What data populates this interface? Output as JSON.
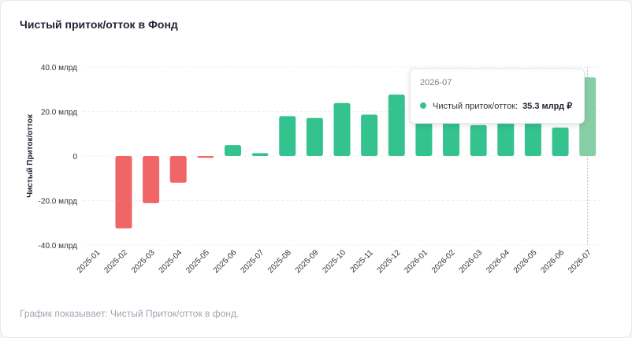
{
  "title": "Чистый приток/отток в Фонд",
  "footnote": "График показывает: Чистый Приток/отток в фонд.",
  "colors": {
    "positive": "#34c38f",
    "negative": "#f06565",
    "highlight": "#86cfa5"
  },
  "tooltip": {
    "title": "2026-07",
    "series_label": "Чистый приток/отток:",
    "value": "35.3 млрд ₽"
  },
  "chart_data": {
    "type": "bar",
    "title": "Чистый приток/отток в Фонд",
    "ylabel": "Чистый Приток/отток",
    "ylim": [
      -40,
      40
    ],
    "y_ticks": [
      {
        "value": 40,
        "label": "40.0 млрд"
      },
      {
        "value": 20,
        "label": "20.0 млрд"
      },
      {
        "value": 0,
        "label": "0"
      },
      {
        "value": -20,
        "label": "-20.0 млрд"
      },
      {
        "value": -40,
        "label": "-40.0 млрд"
      }
    ],
    "grid": true,
    "categories": [
      "2025-01",
      "2025-02",
      "2025-03",
      "2025-04",
      "2025-05",
      "2025-06",
      "2025-07",
      "2025-08",
      "2025-09",
      "2025-10",
      "2025-11",
      "2025-12",
      "2026-01",
      "2026-02",
      "2026-03",
      "2026-04",
      "2026-05",
      "2026-06",
      "2026-07"
    ],
    "values": [
      0,
      -32.5,
      -21.2,
      -12.0,
      -0.8,
      4.9,
      1.3,
      17.9,
      17.1,
      23.8,
      18.6,
      27.6,
      21.0,
      20.0,
      13.9,
      18.0,
      19.0,
      12.8,
      35.3
    ],
    "highlighted": "2026-07"
  }
}
